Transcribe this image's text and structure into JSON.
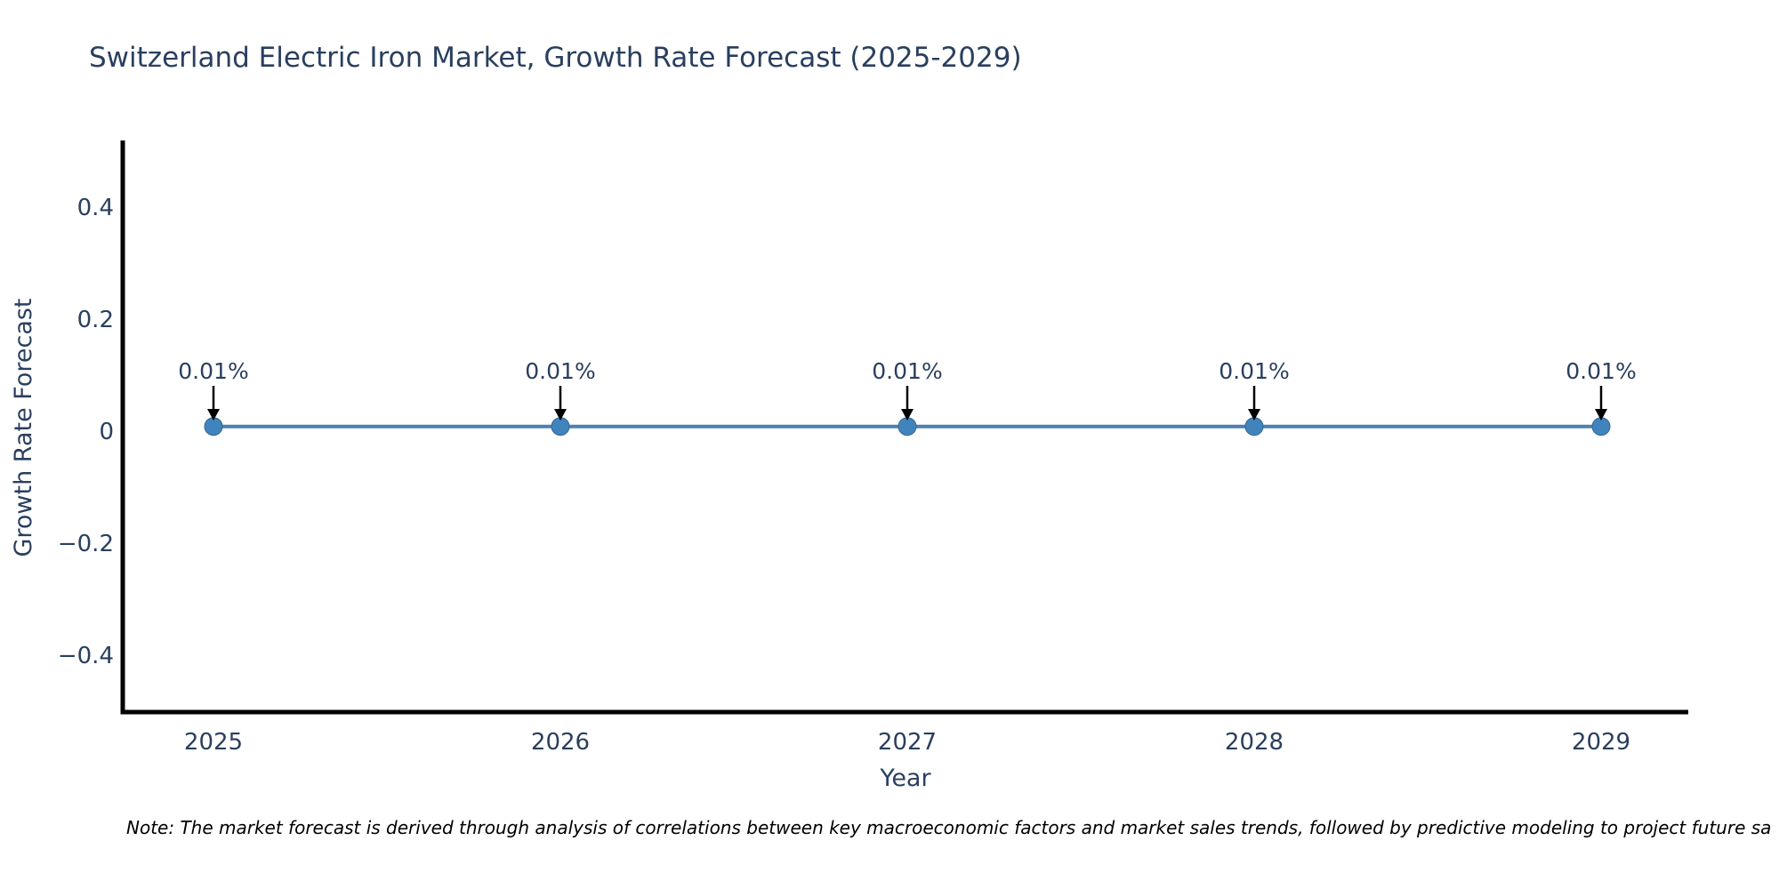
{
  "header": {
    "title": "Switzerland Electric Iron Market, Growth Rate Forecast (2025-2029)"
  },
  "footer": {
    "note": "Note: The market forecast is derived through analysis of correlations between key macroeconomic factors and market sales trends, followed by predictive modeling to project future sa"
  },
  "chart_data": {
    "type": "line",
    "title": "Switzerland Electric Iron Market, Growth Rate Forecast (2025-2029)",
    "xlabel": "Year",
    "ylabel": "Growth Rate Forecast",
    "categories": [
      "2025",
      "2026",
      "2027",
      "2028",
      "2029"
    ],
    "series": [
      {
        "name": "Growth Rate Forecast",
        "values": [
          0.01,
          0.01,
          0.01,
          0.01,
          0.01
        ],
        "unit": "%"
      }
    ],
    "point_labels": [
      "0.01%",
      "0.01%",
      "0.01%",
      "0.01%",
      "0.01%"
    ],
    "yticks": {
      "values": [
        0.4,
        0.2,
        0,
        -0.2,
        -0.4
      ],
      "labels": [
        "0.4",
        "0.2",
        "0",
        "−0.2",
        "−0.4"
      ]
    },
    "ylim": [
      -0.5,
      0.52
    ],
    "grid": false,
    "legend": "none",
    "colors": {
      "line": "#4d80ab",
      "marker": "#4184bd",
      "marker_edge": "#35688f",
      "axis_line": "#000000",
      "text": "#2a3f5f",
      "annotation_arrow": "#000000",
      "background": "#ffffff"
    }
  }
}
